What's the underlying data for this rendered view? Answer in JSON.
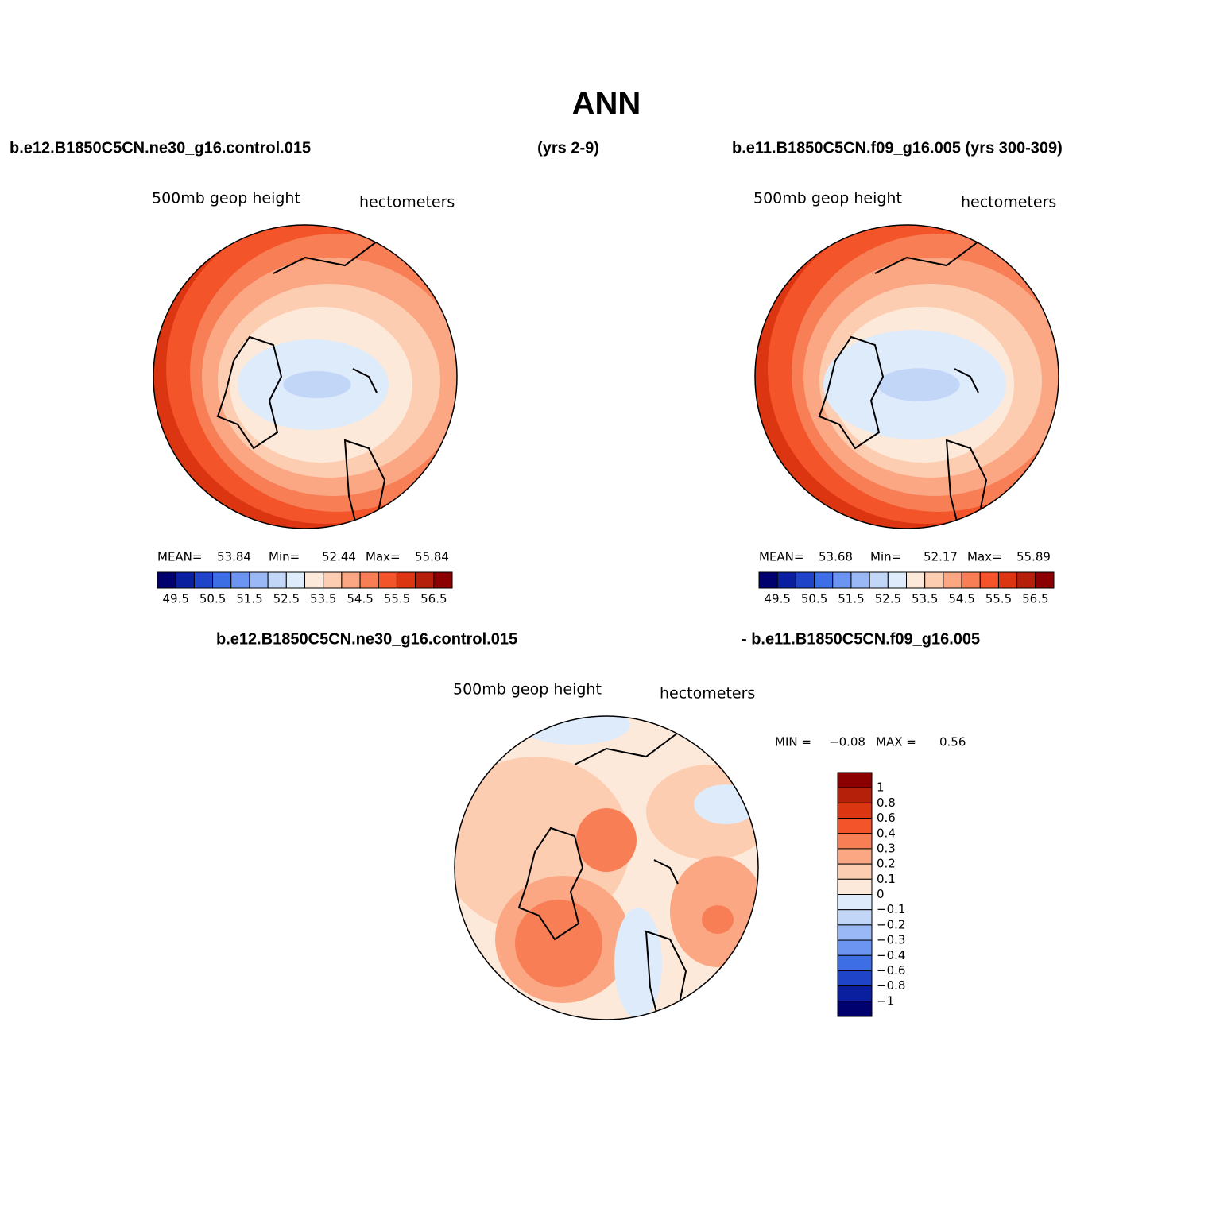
{
  "title": "ANN",
  "top_left": {
    "case": "b.e12.B1850C5CN.ne30_g16.control.015",
    "years": "(yrs 2-9)",
    "variable": "500mb geop height",
    "units": "hectometers",
    "stats": [
      {
        "label": "MEAN=",
        "value": "53.84"
      },
      {
        "label": "Min=",
        "value": "52.44"
      },
      {
        "label": "Max=",
        "value": "55.84"
      }
    ]
  },
  "top_right": {
    "case": "b.e11.B1850C5CN.f09_g16.005 (yrs 300-309)",
    "variable": "500mb geop height",
    "units": "hectometers",
    "stats": [
      {
        "label": "MEAN=",
        "value": "53.68"
      },
      {
        "label": "Min=",
        "value": "52.17"
      },
      {
        "label": "Max=",
        "value": "55.89"
      }
    ]
  },
  "top_colorbar": {
    "labels": [
      "49.5",
      "50.5",
      "51.5",
      "52.5",
      "53.5",
      "54.5",
      "55.5",
      "56.5"
    ],
    "colors": [
      "#00006e",
      "#0a1fa0",
      "#1f44c8",
      "#3e6ee6",
      "#6b95f0",
      "#99b8f5",
      "#c2d6f8",
      "#ddebfb",
      "#fde9d9",
      "#fdcdb2",
      "#fba784",
      "#f77e55",
      "#f3542a",
      "#db3511",
      "#b5200b",
      "#8b0000"
    ]
  },
  "bottom": {
    "case_a": "b.e12.B1850C5CN.ne30_g16.control.015",
    "case_b": "- b.e11.B1850C5CN.f09_g16.005",
    "variable": "500mb geop height",
    "units": "hectometers",
    "stats": [
      {
        "label": "MIN =",
        "value": "−0.08"
      },
      {
        "label": "MAX =",
        "value": "0.56"
      }
    ]
  },
  "bottom_colorbar": {
    "labels": [
      "1",
      "0.8",
      "0.6",
      "0.4",
      "0.3",
      "0.2",
      "0.1",
      "0",
      "−0.1",
      "−0.2",
      "−0.3",
      "−0.4",
      "−0.6",
      "−0.8",
      "−1"
    ],
    "colors": [
      "#8b0000",
      "#b5200b",
      "#db3511",
      "#f3542a",
      "#f77e55",
      "#fba784",
      "#fdcdb2",
      "#fde9d9",
      "#ddebfb",
      "#c2d6f8",
      "#99b8f5",
      "#6b95f0",
      "#3e6ee6",
      "#1f44c8",
      "#0a1fa0",
      "#00006e"
    ]
  }
}
